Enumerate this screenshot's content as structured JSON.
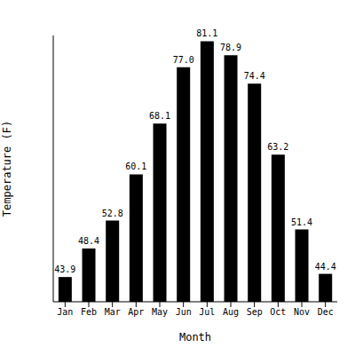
{
  "chart_data": {
    "type": "bar",
    "x_label": "Month",
    "y_label": "Temperature (F)",
    "categories": [
      "Jan",
      "Feb",
      "Mar",
      "Apr",
      "May",
      "Jun",
      "Jul",
      "Aug",
      "Sep",
      "Oct",
      "Nov",
      "Dec"
    ],
    "values": [
      43.9,
      48.4,
      52.8,
      60.1,
      68.1,
      77.0,
      81.1,
      78.9,
      74.4,
      63.2,
      51.4,
      44.4
    ],
    "value_labels": [
      "43.9",
      "48.4",
      "52.8",
      "60.1",
      "68.1",
      "77.0",
      "81.1",
      "78.9",
      "74.4",
      "63.2",
      "51.4",
      "44.4"
    ],
    "color": "#000000",
    "ylim": [
      40,
      82
    ],
    "grid": false,
    "data_labels": true,
    "tick_labels": "x"
  }
}
